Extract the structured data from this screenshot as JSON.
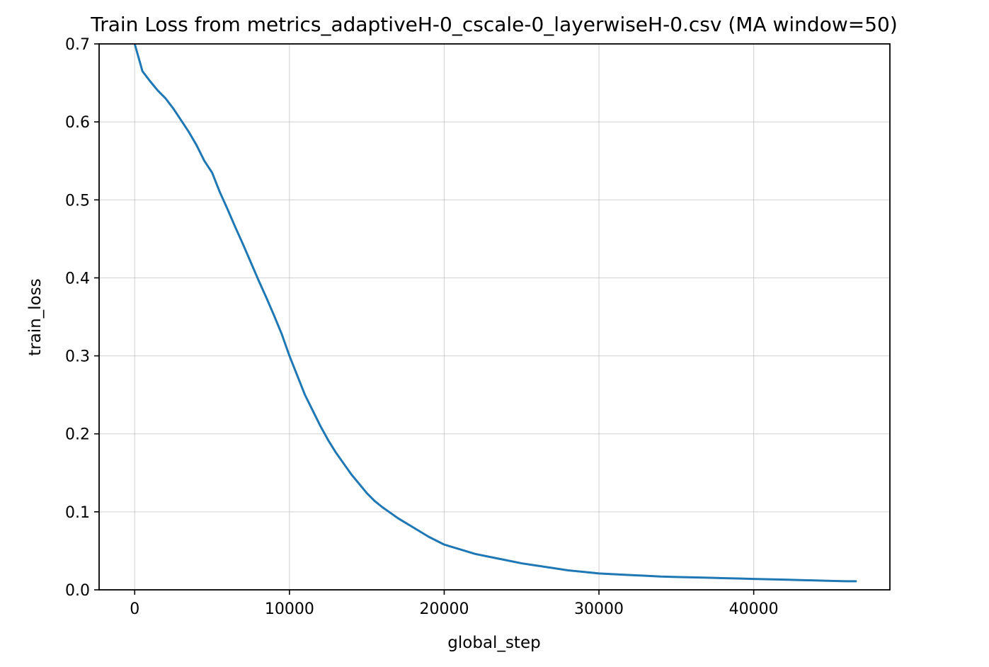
{
  "chart_data": {
    "type": "line",
    "title": "Train Loss from metrics_adaptiveH-0_cscale-0_layerwiseH-0.csv (MA window=50)",
    "xlabel": "global_step",
    "ylabel": "train_loss",
    "xlim": [
      -2300,
      48800
    ],
    "ylim": [
      0.0,
      0.7
    ],
    "xticks": [
      0,
      10000,
      20000,
      30000,
      40000
    ],
    "xtick_labels": [
      "0",
      "10000",
      "20000",
      "30000",
      "40000"
    ],
    "yticks": [
      0.0,
      0.1,
      0.2,
      0.3,
      0.4,
      0.5,
      0.6,
      0.7
    ],
    "ytick_labels": [
      "0.0",
      "0.1",
      "0.2",
      "0.3",
      "0.4",
      "0.5",
      "0.6",
      "0.7"
    ],
    "grid": true,
    "legend": "none",
    "series": [
      {
        "color": "#1f77b4",
        "x": [
          0,
          500,
          1000,
          1500,
          2000,
          2500,
          3000,
          3500,
          4000,
          4500,
          5000,
          5500,
          6000,
          6500,
          7000,
          7500,
          8000,
          8500,
          9000,
          9500,
          10000,
          10500,
          11000,
          11500,
          12000,
          12500,
          13000,
          13500,
          14000,
          14500,
          15000,
          15500,
          16000,
          16500,
          17000,
          17500,
          18000,
          18500,
          19000,
          19500,
          20000,
          21000,
          22000,
          23000,
          24000,
          25000,
          26000,
          27000,
          28000,
          29000,
          30000,
          31000,
          32000,
          33000,
          34000,
          35000,
          36000,
          37000,
          38000,
          39000,
          40000,
          41000,
          42000,
          43000,
          44000,
          45000,
          46000,
          46600
        ],
        "y": [
          0.7,
          0.665,
          0.652,
          0.64,
          0.63,
          0.617,
          0.602,
          0.587,
          0.57,
          0.55,
          0.535,
          0.51,
          0.488,
          0.465,
          0.443,
          0.42,
          0.397,
          0.375,
          0.352,
          0.328,
          0.3,
          0.275,
          0.25,
          0.23,
          0.21,
          0.192,
          0.176,
          0.162,
          0.148,
          0.136,
          0.124,
          0.114,
          0.106,
          0.099,
          0.092,
          0.086,
          0.08,
          0.074,
          0.068,
          0.063,
          0.058,
          0.052,
          0.046,
          0.042,
          0.038,
          0.034,
          0.031,
          0.028,
          0.025,
          0.023,
          0.021,
          0.02,
          0.019,
          0.018,
          0.017,
          0.0165,
          0.016,
          0.0155,
          0.015,
          0.0145,
          0.014,
          0.0135,
          0.013,
          0.0125,
          0.012,
          0.0115,
          0.011,
          0.011
        ]
      }
    ]
  }
}
